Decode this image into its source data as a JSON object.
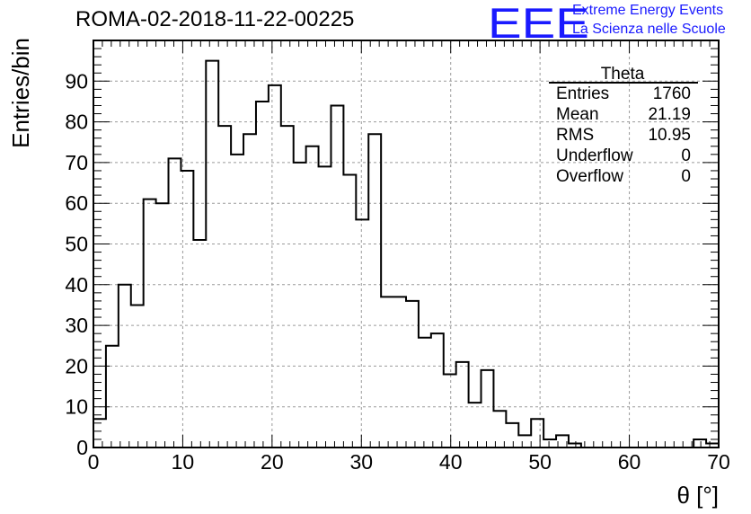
{
  "header": {
    "title": "ROMA-02-2018-11-22-00225",
    "logo_text": "EEE",
    "logo_line1": "Extreme Energy Events",
    "logo_line2": "La Scienza nelle Scuole",
    "logo_color": "#1a1aff"
  },
  "chart_data": {
    "type": "histogram",
    "xlabel": "θ [°]",
    "ylabel": "Entries/bin",
    "xlim": [
      0,
      70
    ],
    "ylim": [
      0,
      100
    ],
    "grid": true,
    "bin_width": 1.4,
    "bin_edges_start": 0,
    "x_ticks": [
      0,
      10,
      20,
      30,
      40,
      50,
      60,
      70
    ],
    "y_ticks": [
      0,
      10,
      20,
      30,
      40,
      50,
      60,
      70,
      80,
      90
    ],
    "values": [
      7,
      25,
      40,
      35,
      61,
      60,
      71,
      68,
      51,
      95,
      79,
      72,
      77,
      85,
      89,
      79,
      70,
      74,
      69,
      84,
      67,
      56,
      77,
      37,
      37,
      36,
      27,
      28,
      18,
      21,
      11,
      19,
      9,
      6,
      3,
      7,
      2,
      3,
      1,
      0,
      0,
      0,
      0,
      0,
      0,
      0,
      0,
      0,
      2,
      1
    ],
    "line_color": "#000000",
    "stats": {
      "name": "Theta",
      "rows": [
        {
          "label": "Entries",
          "value": "1760"
        },
        {
          "label": "Mean",
          "value": "21.19"
        },
        {
          "label": "RMS",
          "value": "10.95"
        },
        {
          "label": "Underflow",
          "value": "0"
        },
        {
          "label": "Overflow",
          "value": "0"
        }
      ]
    }
  }
}
